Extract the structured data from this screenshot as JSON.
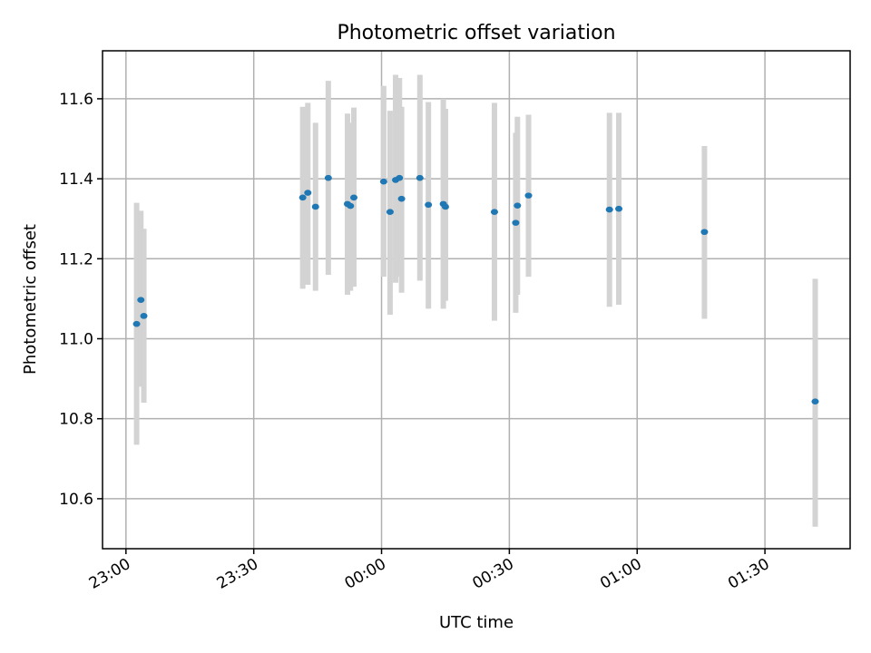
{
  "chart_data": {
    "type": "scatter",
    "title": "Photometric offset variation",
    "xlabel": "UTC time",
    "ylabel": "Photometric offset",
    "x_tick_labels": [
      "23:00",
      "23:30",
      "00:00",
      "00:30",
      "01:00",
      "01:30"
    ],
    "y_tick_labels": [
      "10.6",
      "10.8",
      "11.0",
      "11.2",
      "11.4",
      "11.6"
    ],
    "x_ticks": [
      0,
      30,
      60,
      90,
      120,
      150
    ],
    "y_ticks": [
      10.6,
      10.8,
      11.0,
      11.2,
      11.4,
      11.6
    ],
    "xlim": [
      -5.5,
      170
    ],
    "ylim": [
      10.475,
      11.72
    ],
    "grid": true,
    "x_unit": "minutes after 23:00 UTC",
    "series": [
      {
        "marker_color": "#1f77b4",
        "errorbar_color": "#d3d3d3",
        "points": [
          {
            "x": 2.5,
            "y": 11.037,
            "ylo": 10.735,
            "yhi": 11.34
          },
          {
            "x": 3.5,
            "y": 11.097,
            "ylo": 10.88,
            "yhi": 11.32
          },
          {
            "x": 4.2,
            "y": 11.057,
            "ylo": 10.84,
            "yhi": 11.275
          },
          {
            "x": 41.5,
            "y": 11.353,
            "ylo": 11.125,
            "yhi": 11.58
          },
          {
            "x": 42.7,
            "y": 11.365,
            "ylo": 11.135,
            "yhi": 11.59
          },
          {
            "x": 44.5,
            "y": 11.33,
            "ylo": 11.12,
            "yhi": 11.54
          },
          {
            "x": 47.5,
            "y": 11.402,
            "ylo": 11.16,
            "yhi": 11.645
          },
          {
            "x": 52.0,
            "y": 11.337,
            "ylo": 11.11,
            "yhi": 11.563
          },
          {
            "x": 52.7,
            "y": 11.332,
            "ylo": 11.12,
            "yhi": 11.54
          },
          {
            "x": 53.5,
            "y": 11.353,
            "ylo": 11.13,
            "yhi": 11.578
          },
          {
            "x": 60.5,
            "y": 11.393,
            "ylo": 11.155,
            "yhi": 11.632
          },
          {
            "x": 62.0,
            "y": 11.317,
            "ylo": 11.06,
            "yhi": 11.57
          },
          {
            "x": 63.3,
            "y": 11.397,
            "ylo": 11.14,
            "yhi": 11.66
          },
          {
            "x": 64.2,
            "y": 11.402,
            "ylo": 11.155,
            "yhi": 11.652
          },
          {
            "x": 64.7,
            "y": 11.35,
            "ylo": 11.115,
            "yhi": 11.58
          },
          {
            "x": 69.0,
            "y": 11.402,
            "ylo": 11.145,
            "yhi": 11.66
          },
          {
            "x": 71.0,
            "y": 11.335,
            "ylo": 11.075,
            "yhi": 11.592
          },
          {
            "x": 74.5,
            "y": 11.337,
            "ylo": 11.075,
            "yhi": 11.6
          },
          {
            "x": 75.0,
            "y": 11.33,
            "ylo": 11.095,
            "yhi": 11.575
          },
          {
            "x": 86.5,
            "y": 11.317,
            "ylo": 11.045,
            "yhi": 11.59
          },
          {
            "x": 91.5,
            "y": 11.29,
            "ylo": 11.065,
            "yhi": 11.515
          },
          {
            "x": 91.9,
            "y": 11.333,
            "ylo": 11.11,
            "yhi": 11.555
          },
          {
            "x": 94.5,
            "y": 11.358,
            "ylo": 11.155,
            "yhi": 11.56
          },
          {
            "x": 113.5,
            "y": 11.323,
            "ylo": 11.08,
            "yhi": 11.565
          },
          {
            "x": 115.7,
            "y": 11.325,
            "ylo": 11.085,
            "yhi": 11.565
          },
          {
            "x": 135.8,
            "y": 11.267,
            "ylo": 11.05,
            "yhi": 11.482
          },
          {
            "x": 161.8,
            "y": 10.843,
            "ylo": 10.53,
            "yhi": 11.15
          }
        ]
      }
    ]
  }
}
